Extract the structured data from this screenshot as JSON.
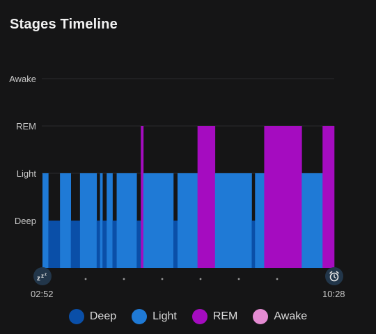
{
  "title": "Stages Timeline",
  "time_start": "02:52",
  "time_end": "10:28",
  "colors": {
    "deep": "#0a4fa8",
    "light": "#1f7ad6",
    "rem": "#a50cc0",
    "awake": "#e48bd2",
    "grid": "#2b2b2d"
  },
  "icons": {
    "start": "sleep-zzz-icon",
    "end": "alarm-clock-icon"
  },
  "chart_data": {
    "type": "area",
    "title": "Stages Timeline",
    "y_categories": [
      "Deep",
      "Light",
      "REM",
      "Awake"
    ],
    "x_start": "02:52",
    "x_end": "10:28",
    "segments": [
      {
        "stage": "Light",
        "start": 0.0,
        "end": 1.4
      },
      {
        "stage": "Deep",
        "start": 1.4,
        "end": 4.2
      },
      {
        "stage": "Light",
        "start": 4.2,
        "end": 6.8
      },
      {
        "stage": "Deep",
        "start": 6.8,
        "end": 9.0
      },
      {
        "stage": "Light",
        "start": 9.0,
        "end": 13.0
      },
      {
        "stage": "Deep",
        "start": 13.0,
        "end": 13.8
      },
      {
        "stage": "Light",
        "start": 13.8,
        "end": 14.4
      },
      {
        "stage": "Deep",
        "start": 14.4,
        "end": 15.4
      },
      {
        "stage": "Light",
        "start": 15.4,
        "end": 16.8
      },
      {
        "stage": "Deep",
        "start": 16.8,
        "end": 17.8
      },
      {
        "stage": "Light",
        "start": 17.8,
        "end": 22.6
      },
      {
        "stage": "Deep",
        "start": 22.6,
        "end": 23.6
      },
      {
        "stage": "REM",
        "start": 23.6,
        "end": 24.2
      },
      {
        "stage": "Light",
        "start": 24.2,
        "end": 31.4
      },
      {
        "stage": "Deep",
        "start": 31.4,
        "end": 32.4
      },
      {
        "stage": "Light",
        "start": 32.4,
        "end": 37.2
      },
      {
        "stage": "REM",
        "start": 37.2,
        "end": 41.4
      },
      {
        "stage": "Light",
        "start": 41.4,
        "end": 50.2
      },
      {
        "stage": "Deep",
        "start": 50.2,
        "end": 51.0
      },
      {
        "stage": "Light",
        "start": 51.0,
        "end": 53.2
      },
      {
        "stage": "REM",
        "start": 53.2,
        "end": 62.2
      },
      {
        "stage": "Light",
        "start": 62.2,
        "end": 67.2
      },
      {
        "stage": "REM",
        "start": 67.2,
        "end": 70.0
      }
    ],
    "x_total": 70.0,
    "legend": [
      "Deep",
      "Light",
      "REM",
      "Awake"
    ]
  }
}
